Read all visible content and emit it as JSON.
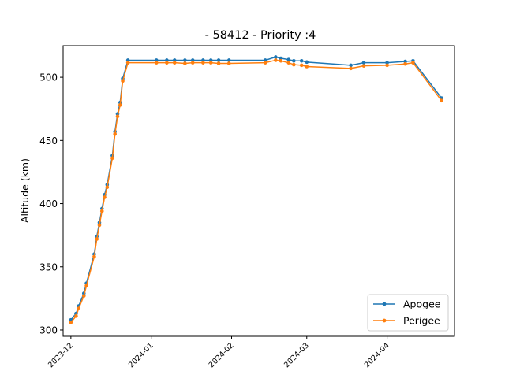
{
  "chart_data": {
    "type": "line",
    "title": "- 58412 - Priority :4",
    "xlabel": "",
    "ylabel": "Altitude (km)",
    "xlim": [
      "2023-11-28",
      "2024-04-27"
    ],
    "ylim": [
      295,
      525
    ],
    "x_ticks": [
      "2023-12",
      "2024-01",
      "2024-02",
      "2024-03",
      "2024-04"
    ],
    "y_ticks": [
      300,
      350,
      400,
      450,
      500
    ],
    "grid": false,
    "legend": "lower right",
    "x": [
      "2023-12-01",
      "2023-12-03",
      "2023-12-04",
      "2023-12-06",
      "2023-12-07",
      "2023-12-10",
      "2023-12-11",
      "2023-12-12",
      "2023-12-13",
      "2023-12-14",
      "2023-12-15",
      "2023-12-17",
      "2023-12-18",
      "2023-12-19",
      "2023-12-20",
      "2023-12-21",
      "2023-12-23",
      "2024-01-03",
      "2024-01-07",
      "2024-01-10",
      "2024-01-14",
      "2024-01-17",
      "2024-01-21",
      "2024-01-24",
      "2024-01-27",
      "2024-01-31",
      "2024-02-14",
      "2024-02-18",
      "2024-02-20",
      "2024-02-23",
      "2024-02-25",
      "2024-02-28",
      "2024-03-01",
      "2024-03-18",
      "2024-03-23",
      "2024-04-01",
      "2024-04-08",
      "2024-04-11",
      "2024-04-22"
    ],
    "series": [
      {
        "name": "Apogee",
        "color": "#1f77b4",
        "values": [
          308,
          313,
          319,
          329,
          337,
          360,
          374,
          385,
          396,
          407,
          415,
          438,
          457,
          471,
          480,
          499,
          513.5,
          513.5,
          513.5,
          513.5,
          513.5,
          513.5,
          513.5,
          513.5,
          513.5,
          513.5,
          513.5,
          516,
          515,
          514,
          513,
          513,
          512,
          509.5,
          511.5,
          511.5,
          512.5,
          513,
          483.5
        ]
      },
      {
        "name": "Perigee",
        "color": "#ff7f0e",
        "values": [
          306,
          311,
          317,
          327,
          335,
          358,
          372,
          383,
          394,
          405,
          413,
          436,
          455,
          469,
          478,
          497,
          511.5,
          511.5,
          511.5,
          511.5,
          511,
          511.5,
          511.5,
          511.5,
          511,
          511,
          511.5,
          513.5,
          513,
          511.5,
          510,
          509.5,
          508.5,
          507,
          509,
          509.5,
          510.5,
          511.5,
          481.5
        ]
      }
    ]
  }
}
